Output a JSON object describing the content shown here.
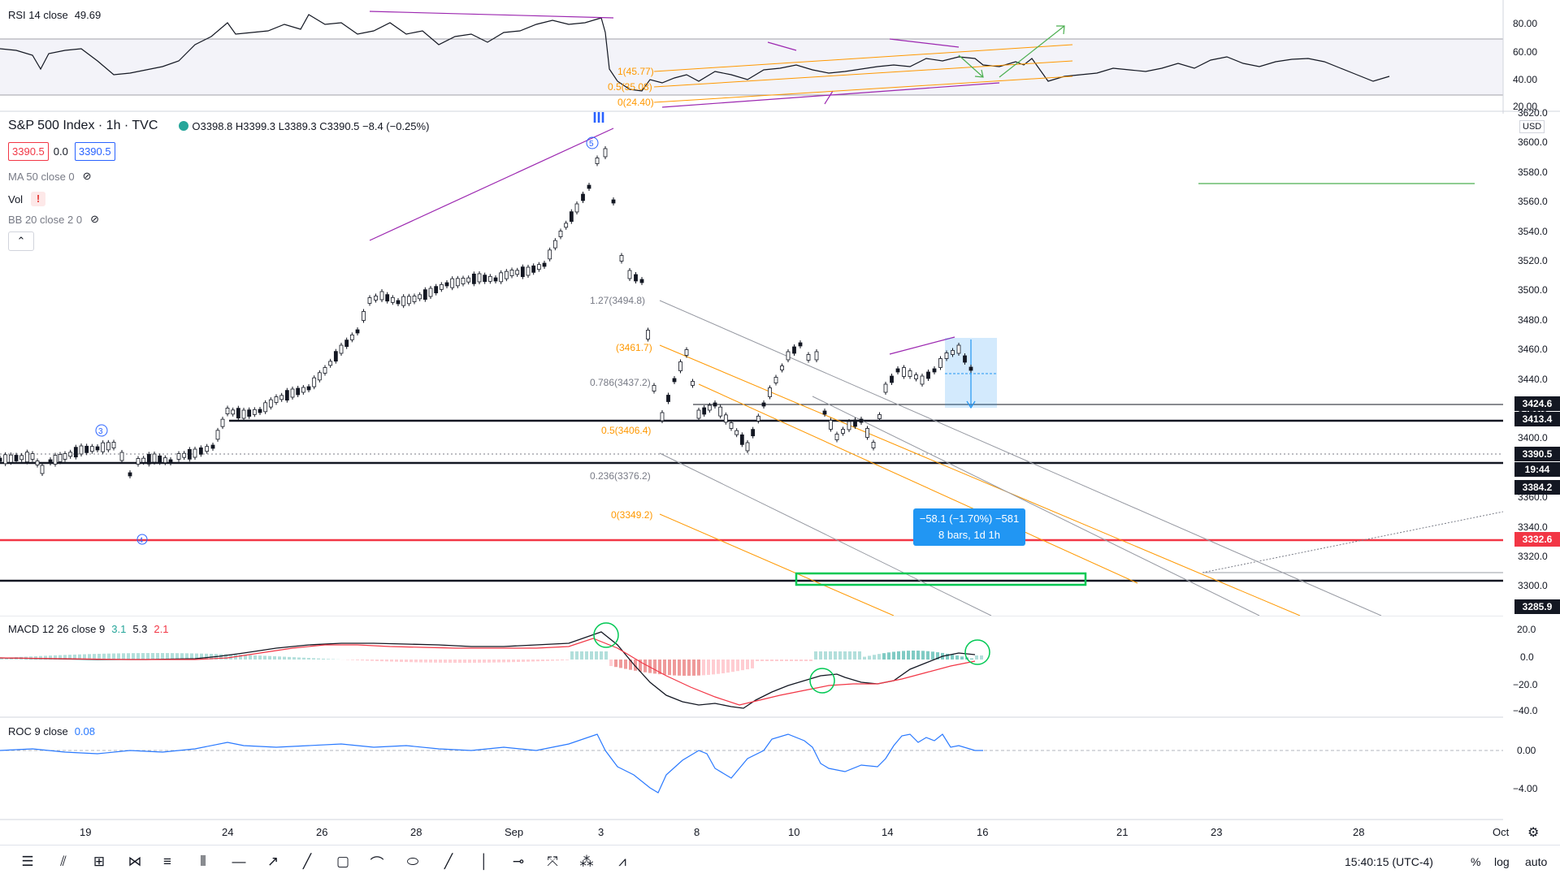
{
  "rsi": {
    "label": "RSI 14 close",
    "value": "49.69",
    "axis": [
      "80.00",
      "60.00",
      "40.00",
      "20.00"
    ],
    "fib": [
      "1(45.77)",
      "0.5(35.08)",
      "0(24.40)"
    ]
  },
  "main": {
    "symbol": "S&P 500 Index · 1h · TVC",
    "ohlc": "O3398.8 H3399.3 L3389.3 C3390.5 −8.4 (−0.25%)",
    "bid": "3390.5",
    "spread": "0.0",
    "ask": "3390.5",
    "indicators": [
      {
        "label": "MA 50 close 0"
      },
      {
        "label": "Vol"
      },
      {
        "label": "BB 20 close 2 0"
      }
    ],
    "currency": "USD",
    "axis": [
      "3620.0",
      "3600.0",
      "3580.0",
      "3560.0",
      "3540.0",
      "3520.0",
      "3500.0",
      "3480.0",
      "3460.0",
      "3440.0",
      "3420.0",
      "3400.0",
      "3380.0",
      "3360.0",
      "3340.0",
      "3320.0",
      "3300.0"
    ],
    "price_tags": [
      {
        "text": "3424.6",
        "color": "#131722"
      },
      {
        "text": "3413.4",
        "color": "#131722"
      },
      {
        "text": "3390.5",
        "color": "#131722"
      },
      {
        "text": "19:44",
        "color": "#131722"
      },
      {
        "text": "3384.2",
        "color": "#131722"
      },
      {
        "text": "3332.6",
        "color": "#f23645"
      },
      {
        "text": "3285.9",
        "color": "#131722"
      }
    ],
    "fib_labels": [
      "1.27(3494.8)",
      "(3461.7)",
      "0.786(3437.2)",
      "0.5(3406.4)",
      "0.236(3376.2)",
      "0(3349.2)"
    ],
    "wave_labels": [
      "5",
      "III",
      "3",
      "4"
    ],
    "measure": {
      "line1": "−58.1 (−1.70%) −581",
      "line2": "8 bars, 1d 1h"
    }
  },
  "macd": {
    "label": "MACD 12 26 close 9",
    "v1": "3.1",
    "v2": "5.3",
    "v3": "2.1",
    "axis": [
      "20.0",
      "0.0",
      "−20.0",
      "−40.0"
    ]
  },
  "roc": {
    "label": "ROC 9 close",
    "value": "0.08",
    "axis": [
      "0.00",
      "−4.00"
    ]
  },
  "time_axis": [
    "19",
    "24",
    "26",
    "28",
    "Sep",
    "3",
    "8",
    "10",
    "14",
    "16",
    "21",
    "23",
    "28",
    "Oct"
  ],
  "bottom": {
    "clock": "15:40:15 (UTC-4)",
    "pct": "%",
    "log": "log",
    "auto": "auto"
  },
  "colors": {
    "up": "#131722",
    "green": "#4caf50",
    "red": "#f23645",
    "orange": "#ff9800",
    "purple": "#9c27b0",
    "blue": "#2962ff",
    "roc": "#2979ff"
  }
}
